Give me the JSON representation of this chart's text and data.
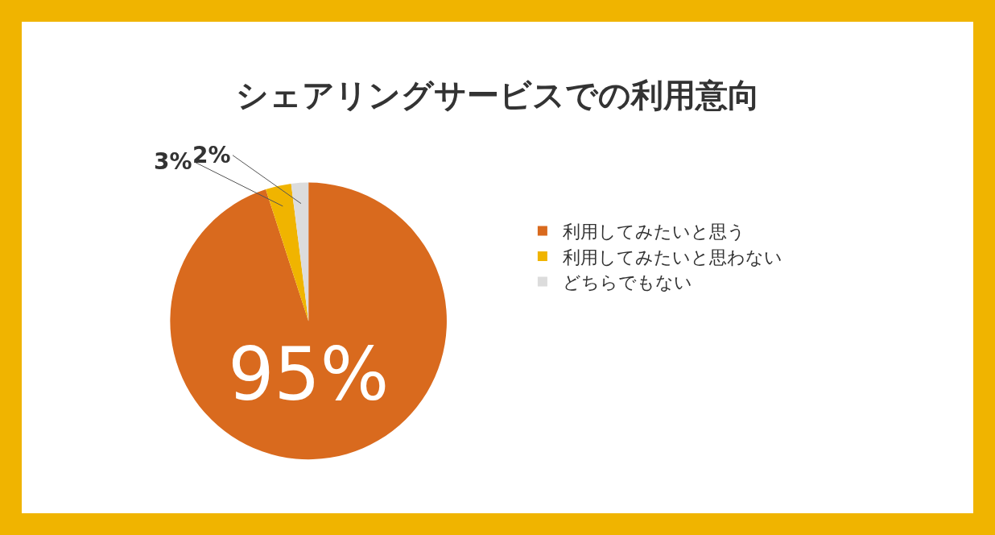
{
  "chart_data": {
    "type": "pie",
    "title": "シェアリングサービスでの利用意向",
    "categories": [
      "利用してみたいと思う",
      "利用してみたいと思わない",
      "どちらでもない"
    ],
    "values": [
      95,
      3,
      2
    ],
    "colors": [
      "#d96a1e",
      "#f0b400",
      "#dcdcdc"
    ],
    "value_labels": [
      "95%",
      "3%",
      "2%"
    ],
    "legend": "right"
  }
}
